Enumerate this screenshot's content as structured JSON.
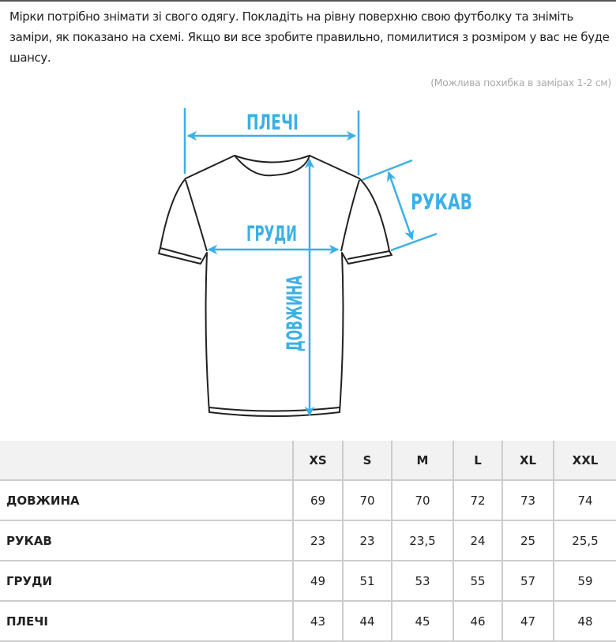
{
  "intro": {
    "text": "Мірки потрібно знімати зі свого одягу. Покладіть на рівну поверхню свою футболку та зніміть заміри, як показано на схемі. Якщо ви все зробите правильно, помилитися з розміром у вас не буде шансу.",
    "note": "(Можлива похибка в замірах 1-2 см)"
  },
  "diagram": {
    "accent_color": "#3bb0e6",
    "labels": {
      "shoulders": "ПЛЕЧІ",
      "sleeve": "РУКАВ",
      "chest": "ГРУДИ",
      "length": "ДОВЖИНА"
    }
  },
  "table": {
    "headers": [
      "",
      "XS",
      "S",
      "M",
      "L",
      "XL",
      "XXL"
    ],
    "rows": [
      {
        "label": "ДОВЖИНА",
        "values": [
          "69",
          "70",
          "70",
          "72",
          "73",
          "74"
        ]
      },
      {
        "label": "РУКАВ",
        "values": [
          "23",
          "23",
          "23,5",
          "24",
          "25",
          "25,5"
        ]
      },
      {
        "label": "ГРУДИ",
        "values": [
          "49",
          "51",
          "53",
          "55",
          "57",
          "59"
        ]
      },
      {
        "label": "ПЛЕЧІ",
        "values": [
          "43",
          "44",
          "45",
          "46",
          "47",
          "48"
        ]
      }
    ]
  }
}
